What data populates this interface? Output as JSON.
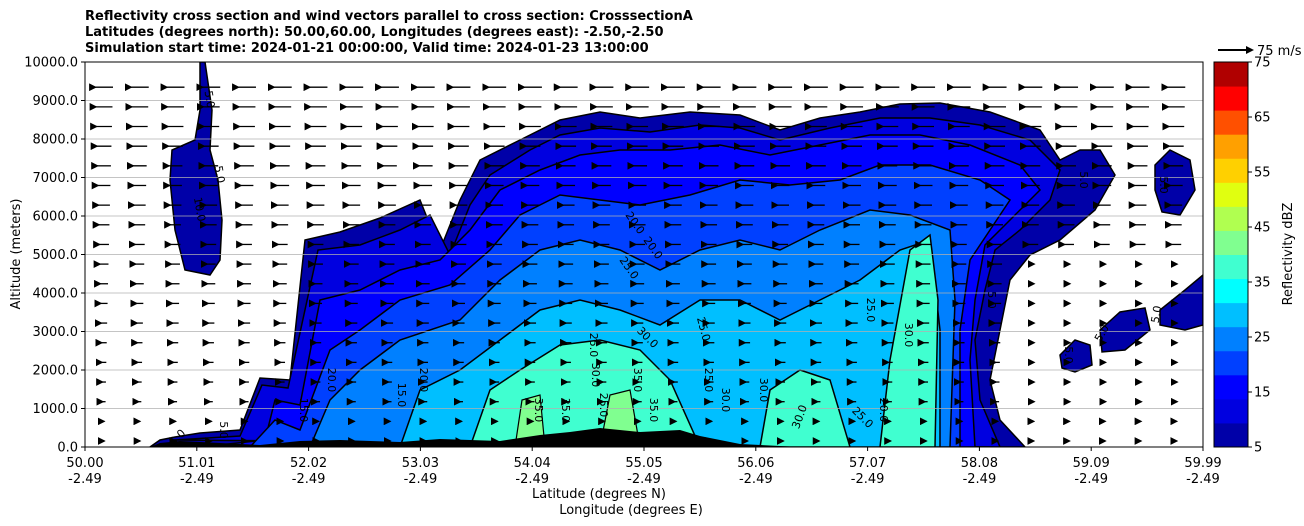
{
  "chart_data": {
    "type": "heatmap",
    "title": [
      "Reflectivity cross section and wind vectors parallel to cross section: CrosssectionA",
      "Latitudes (degrees north): 50.00,60.00, Longitudes (degrees east): -2.50,-2.50",
      "Simulation start time: 2024-01-21 00:00:00, Valid time: 2024-01-23 13:00:00"
    ],
    "ylabel": "Altitude (meters)",
    "xlabel": "Latitude (degrees N)",
    "xlabel2": "Longitude (degrees E)",
    "ylim": [
      0,
      10000
    ],
    "yticks": [
      "0.0",
      "1000.0",
      "2000.0",
      "3000.0",
      "4000.0",
      "5000.0",
      "6000.0",
      "7000.0",
      "8000.0",
      "9000.0",
      "10000.0"
    ],
    "xticks": [
      {
        "lat": "50.00",
        "lon": "-2.49"
      },
      {
        "lat": "51.01",
        "lon": "-2.49"
      },
      {
        "lat": "52.02",
        "lon": "-2.49"
      },
      {
        "lat": "53.03",
        "lon": "-2.49"
      },
      {
        "lat": "54.04",
        "lon": "-2.49"
      },
      {
        "lat": "55.05",
        "lon": "-2.49"
      },
      {
        "lat": "56.06",
        "lon": "-2.49"
      },
      {
        "lat": "57.07",
        "lon": "-2.49"
      },
      {
        "lat": "58.08",
        "lon": "-2.49"
      },
      {
        "lat": "59.09",
        "lon": "-2.49"
      },
      {
        "lat": "59.99",
        "lon": "-2.49"
      }
    ],
    "grid": "horizontal",
    "colorbar": {
      "label": "Reflectivity dBZ",
      "range": [
        5,
        75
      ],
      "ticks": [
        "5",
        "15",
        "25",
        "35",
        "45",
        "55",
        "65",
        "75"
      ],
      "levels": [
        5,
        10,
        15,
        20,
        25,
        30,
        35,
        40,
        45,
        50,
        55,
        60,
        65,
        70,
        75
      ],
      "colors": [
        "#0000a8",
        "#0000e0",
        "#0000ff",
        "#0040ff",
        "#0080ff",
        "#00bfff",
        "#00ffff",
        "#40ffd0",
        "#80ff90",
        "#b0ff50",
        "#e0ff10",
        "#ffd000",
        "#ffa000",
        "#ff5000",
        "#ff0000",
        "#b00000"
      ]
    },
    "quiver_key": "75 m/s",
    "contour_labels": [
      "5.0",
      "10.0",
      "15.0",
      "20.0",
      "25.0",
      "30.0",
      "35.0"
    ],
    "reflectivity_profile_dbz": [
      {
        "lat": 51.0,
        "top": 9.8,
        "core": 12
      },
      {
        "lat": 52.3,
        "top": 5.2,
        "core": 22
      },
      {
        "lat": 53.5,
        "top": 5.8,
        "core": 27
      },
      {
        "lat": 54.2,
        "top": 7.2,
        "core": 36
      },
      {
        "lat": 55.0,
        "top": 7.8,
        "core": 38
      },
      {
        "lat": 56.0,
        "top": 7.9,
        "core": 33
      },
      {
        "lat": 57.0,
        "top": 8.6,
        "core": 32
      },
      {
        "lat": 57.5,
        "top": 8.8,
        "core": 34
      },
      {
        "lat": 58.3,
        "top": 7.6,
        "core": 10
      },
      {
        "lat": 59.4,
        "top": 7.3,
        "core": 7
      }
    ]
  }
}
